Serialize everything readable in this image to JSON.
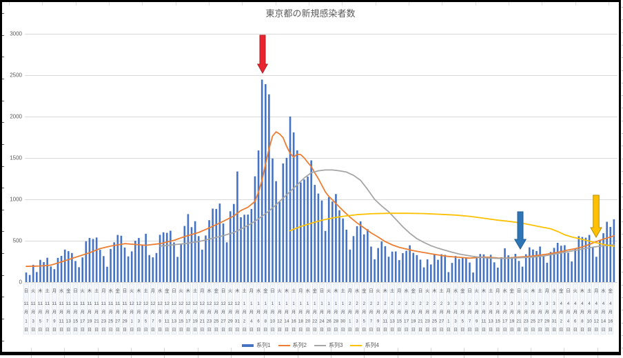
{
  "chart_data": {
    "type": "combo",
    "title": "東京都の新規感染者数",
    "ylim": [
      0,
      3000
    ],
    "yticks": [
      0,
      500,
      1000,
      1500,
      2000,
      2500,
      3000
    ],
    "grid": true,
    "legend_position": "bottom",
    "band_color": "#F3F7FB",
    "band_edge_color": "#DCE3EC",
    "grid_color": "#D9D9D9",
    "text_color": "#595959",
    "x_labels": [
      [
        "日",
        11,
        1
      ],
      [
        "火",
        11,
        3
      ],
      [
        "木",
        11,
        5
      ],
      [
        "土",
        11,
        7
      ],
      [
        "月",
        11,
        9
      ],
      [
        "水",
        11,
        11
      ],
      [
        "金",
        11,
        13
      ],
      [
        "日",
        11,
        15
      ],
      [
        "火",
        11,
        17
      ],
      [
        "木",
        11,
        19
      ],
      [
        "土",
        11,
        21
      ],
      [
        "月",
        11,
        23
      ],
      [
        "水",
        11,
        25
      ],
      [
        "金",
        11,
        27
      ],
      [
        "日",
        11,
        29
      ],
      [
        "火",
        12,
        1
      ],
      [
        "木",
        12,
        3
      ],
      [
        "土",
        12,
        5
      ],
      [
        "月",
        12,
        7
      ],
      [
        "水",
        12,
        9
      ],
      [
        "金",
        12,
        11
      ],
      [
        "日",
        12,
        13
      ],
      [
        "火",
        12,
        15
      ],
      [
        "木",
        12,
        17
      ],
      [
        "土",
        12,
        19
      ],
      [
        "月",
        12,
        21
      ],
      [
        "水",
        12,
        23
      ],
      [
        "金",
        12,
        25
      ],
      [
        "日",
        12,
        27
      ],
      [
        "火",
        12,
        29
      ],
      [
        "木",
        12,
        31
      ],
      [
        "土",
        1,
        2
      ],
      [
        "月",
        1,
        4
      ],
      [
        "水",
        1,
        6
      ],
      [
        "金",
        1,
        8
      ],
      [
        "日",
        1,
        10
      ],
      [
        "火",
        1,
        12
      ],
      [
        "木",
        1,
        14
      ],
      [
        "土",
        1,
        16
      ],
      [
        "月",
        1,
        18
      ],
      [
        "水",
        1,
        20
      ],
      [
        "金",
        1,
        22
      ],
      [
        "日",
        1,
        24
      ],
      [
        "火",
        1,
        26
      ],
      [
        "木",
        1,
        28
      ],
      [
        "土",
        1,
        30
      ],
      [
        "月",
        2,
        1
      ],
      [
        "水",
        2,
        3
      ],
      [
        "金",
        2,
        5
      ],
      [
        "日",
        2,
        7
      ],
      [
        "火",
        2,
        9
      ],
      [
        "木",
        2,
        11
      ],
      [
        "土",
        2,
        13
      ],
      [
        "月",
        2,
        15
      ],
      [
        "水",
        2,
        17
      ],
      [
        "金",
        2,
        19
      ],
      [
        "日",
        2,
        21
      ],
      [
        "火",
        2,
        23
      ],
      [
        "木",
        2,
        25
      ],
      [
        "土",
        2,
        27
      ],
      [
        "月",
        3,
        1
      ],
      [
        "水",
        3,
        3
      ],
      [
        "金",
        3,
        5
      ],
      [
        "日",
        3,
        7
      ],
      [
        "火",
        3,
        9
      ],
      [
        "木",
        3,
        11
      ],
      [
        "土",
        3,
        13
      ],
      [
        "月",
        3,
        15
      ],
      [
        "水",
        3,
        17
      ],
      [
        "金",
        3,
        19
      ],
      [
        "日",
        3,
        21
      ],
      [
        "火",
        3,
        23
      ],
      [
        "木",
        3,
        25
      ],
      [
        "土",
        3,
        27
      ],
      [
        "月",
        3,
        29
      ],
      [
        "水",
        3,
        31
      ],
      [
        "金",
        4,
        2
      ],
      [
        "日",
        4,
        4
      ],
      [
        "火",
        4,
        6
      ],
      [
        "木",
        4,
        8
      ],
      [
        "土",
        4,
        10
      ],
      [
        "月",
        4,
        12
      ],
      [
        "水",
        4,
        14
      ],
      [
        "金",
        4,
        16
      ]
    ],
    "month_suffix": "月",
    "day_suffix": "日",
    "series": [
      {
        "name": "系列1",
        "type": "bar",
        "color": "#4472C4",
        "values": [
          116,
          87,
          209,
          122,
          269,
          242,
          294,
          189,
          157,
          293,
          317,
          393,
          374,
          352,
          255,
          180,
          298,
          493,
          534,
          522,
          539,
          391,
          314,
          186,
          401,
          481,
          570,
          561,
          418,
          311,
          372,
          500,
          533,
          449,
          584,
          327,
          299,
          352,
          572,
          602,
          595,
          621,
          480,
          305,
          460,
          678,
          822,
          664,
          736,
          556,
          392,
          563,
          748,
          888,
          884,
          949,
          708,
          481,
          856,
          944,
          1337,
          783,
          814,
          816,
          884,
          1278,
          1591,
          2447,
          2392,
          2268,
          1494,
          1219,
          970,
          1433,
          1502,
          2001,
          1809,
          1592,
          1204,
          1240,
          1274,
          1471,
          1175,
          1070,
          986,
          618,
          1026,
          973,
          1064,
          868,
          769,
          633,
          393,
          556,
          676,
          734,
          577,
          639,
          429,
          276,
          412,
          491,
          434,
          307,
          369,
          371,
          266,
          350,
          378,
          445,
          353,
          327,
          272,
          178,
          275,
          213,
          340,
          270,
          337,
          329,
          121,
          232,
          316,
          279,
          301,
          293,
          237,
          116,
          290,
          340,
          335,
          304,
          330,
          239,
          175,
          300,
          409,
          323,
          303,
          342,
          256,
          187,
          337,
          420,
          394,
          376,
          430,
          313,
          234,
          364,
          414,
          475,
          440,
          446,
          355,
          249,
          399,
          555,
          545,
          537,
          570,
          421,
          306,
          510,
          591,
          729,
          667,
          759
        ]
      },
      {
        "name": "系列2",
        "type": "line",
        "color": "#ED7D31",
        "anchors": [
          [
            0,
            190
          ],
          [
            4,
            195
          ],
          [
            7,
            205
          ],
          [
            10,
            245
          ],
          [
            14,
            300
          ],
          [
            18,
            355
          ],
          [
            21,
            405
          ],
          [
            24,
            435
          ],
          [
            28,
            465
          ],
          [
            31,
            455
          ],
          [
            34,
            445
          ],
          [
            38,
            465
          ],
          [
            42,
            505
          ],
          [
            45,
            550
          ],
          [
            49,
            600
          ],
          [
            52,
            655
          ],
          [
            56,
            735
          ],
          [
            59,
            800
          ],
          [
            61,
            865
          ],
          [
            63,
            905
          ],
          [
            65,
            975
          ],
          [
            66,
            1090
          ],
          [
            67,
            1230
          ],
          [
            68,
            1425
          ],
          [
            69,
            1610
          ],
          [
            70,
            1765
          ],
          [
            71,
            1815
          ],
          [
            72,
            1790
          ],
          [
            73,
            1745
          ],
          [
            74,
            1640
          ],
          [
            75,
            1555
          ],
          [
            76,
            1510
          ],
          [
            77,
            1545
          ],
          [
            78,
            1540
          ],
          [
            79,
            1500
          ],
          [
            80,
            1445
          ],
          [
            81,
            1395
          ],
          [
            82,
            1320
          ],
          [
            83,
            1250
          ],
          [
            84,
            1170
          ],
          [
            85,
            1090
          ],
          [
            86,
            1035
          ],
          [
            87,
            995
          ],
          [
            88,
            950
          ],
          [
            90,
            865
          ],
          [
            92,
            785
          ],
          [
            94,
            715
          ],
          [
            96,
            655
          ],
          [
            98,
            595
          ],
          [
            100,
            545
          ],
          [
            102,
            490
          ],
          [
            104,
            450
          ],
          [
            106,
            420
          ],
          [
            108,
            400
          ],
          [
            110,
            380
          ],
          [
            112,
            365
          ],
          [
            114,
            350
          ],
          [
            116,
            335
          ],
          [
            118,
            322
          ],
          [
            120,
            310
          ],
          [
            122,
            303
          ],
          [
            124,
            297
          ],
          [
            126,
            290
          ],
          [
            128,
            296
          ],
          [
            130,
            303
          ],
          [
            132,
            298
          ],
          [
            134,
            292
          ],
          [
            136,
            288
          ],
          [
            138,
            296
          ],
          [
            140,
            303
          ],
          [
            142,
            308
          ],
          [
            144,
            316
          ],
          [
            146,
            327
          ],
          [
            148,
            338
          ],
          [
            150,
            352
          ],
          [
            152,
            368
          ],
          [
            154,
            388
          ],
          [
            156,
            404
          ],
          [
            158,
            425
          ],
          [
            160,
            455
          ],
          [
            162,
            490
          ],
          [
            164,
            520
          ],
          [
            166,
            545
          ],
          [
            167,
            560
          ]
        ]
      },
      {
        "name": "系列3",
        "type": "line",
        "color": "#A5A5A5",
        "anchors": [
          [
            38,
            435
          ],
          [
            42,
            452
          ],
          [
            45,
            465
          ],
          [
            49,
            490
          ],
          [
            52,
            520
          ],
          [
            56,
            562
          ],
          [
            59,
            600
          ],
          [
            61,
            640
          ],
          [
            63,
            685
          ],
          [
            65,
            735
          ],
          [
            67,
            795
          ],
          [
            69,
            860
          ],
          [
            71,
            935
          ],
          [
            73,
            1015
          ],
          [
            75,
            1095
          ],
          [
            77,
            1175
          ],
          [
            79,
            1258
          ],
          [
            81,
            1322
          ],
          [
            83,
            1345
          ],
          [
            85,
            1355
          ],
          [
            87,
            1355
          ],
          [
            89,
            1345
          ],
          [
            91,
            1330
          ],
          [
            93,
            1290
          ],
          [
            95,
            1230
          ],
          [
            97,
            1120
          ],
          [
            99,
            1000
          ],
          [
            101,
            920
          ],
          [
            103,
            850
          ],
          [
            105,
            760
          ],
          [
            107,
            670
          ],
          [
            109,
            590
          ],
          [
            111,
            525
          ],
          [
            113,
            480
          ],
          [
            115,
            440
          ],
          [
            117,
            410
          ],
          [
            119,
            385
          ],
          [
            121,
            362
          ],
          [
            123,
            340
          ],
          [
            125,
            325
          ],
          [
            127,
            310
          ],
          [
            129,
            300
          ],
          [
            131,
            292
          ],
          [
            133,
            288
          ],
          [
            135,
            286
          ],
          [
            137,
            288
          ],
          [
            139,
            292
          ],
          [
            141,
            296
          ],
          [
            143,
            300
          ],
          [
            145,
            306
          ],
          [
            147,
            316
          ],
          [
            149,
            330
          ],
          [
            151,
            345
          ],
          [
            153,
            360
          ],
          [
            155,
            376
          ],
          [
            157,
            392
          ],
          [
            159,
            408
          ],
          [
            161,
            422
          ],
          [
            163,
            434
          ],
          [
            165,
            444
          ],
          [
            167,
            452
          ]
        ]
      },
      {
        "name": "系列4",
        "type": "line",
        "color": "#FFC000",
        "anchors": [
          [
            75,
            622
          ],
          [
            78,
            672
          ],
          [
            81,
            712
          ],
          [
            84,
            748
          ],
          [
            87,
            775
          ],
          [
            90,
            795
          ],
          [
            94,
            815
          ],
          [
            98,
            826
          ],
          [
            103,
            832
          ],
          [
            108,
            832
          ],
          [
            113,
            828
          ],
          [
            118,
            818
          ],
          [
            122,
            810
          ],
          [
            126,
            795
          ],
          [
            130,
            772
          ],
          [
            134,
            748
          ],
          [
            137,
            735
          ],
          [
            140,
            718
          ],
          [
            143,
            695
          ],
          [
            146,
            668
          ],
          [
            149,
            645
          ],
          [
            151,
            612
          ],
          [
            153,
            572
          ],
          [
            155,
            546
          ],
          [
            157,
            526
          ],
          [
            159,
            506
          ],
          [
            161,
            486
          ],
          [
            163,
            466
          ],
          [
            165,
            446
          ],
          [
            167,
            433
          ]
        ]
      }
    ],
    "annotations": [
      {
        "id": "red-arrow",
        "shape": "arrow-down",
        "color": "#E82530",
        "stroke": "#AF2126",
        "cx": 381,
        "y_top": 51,
        "y_tip": 106,
        "shaft_w": 8,
        "head_w": 14.5,
        "head_h": 13
      },
      {
        "id": "blue-arrow",
        "shape": "arrow-down",
        "color": "#2E75B6",
        "stroke": "#245E93",
        "cx": 755,
        "y_top": 307,
        "y_tip": 361,
        "shaft_w": 8,
        "head_w": 16.5,
        "head_h": 14
      },
      {
        "id": "yellow-arrow",
        "shape": "arrow-down",
        "color": "#FFC000",
        "stroke": "#B78B00",
        "cx": 865,
        "y_top": 283,
        "y_tip": 344,
        "shaft_w": 8.5,
        "head_w": 16,
        "head_h": 14
      }
    ]
  }
}
